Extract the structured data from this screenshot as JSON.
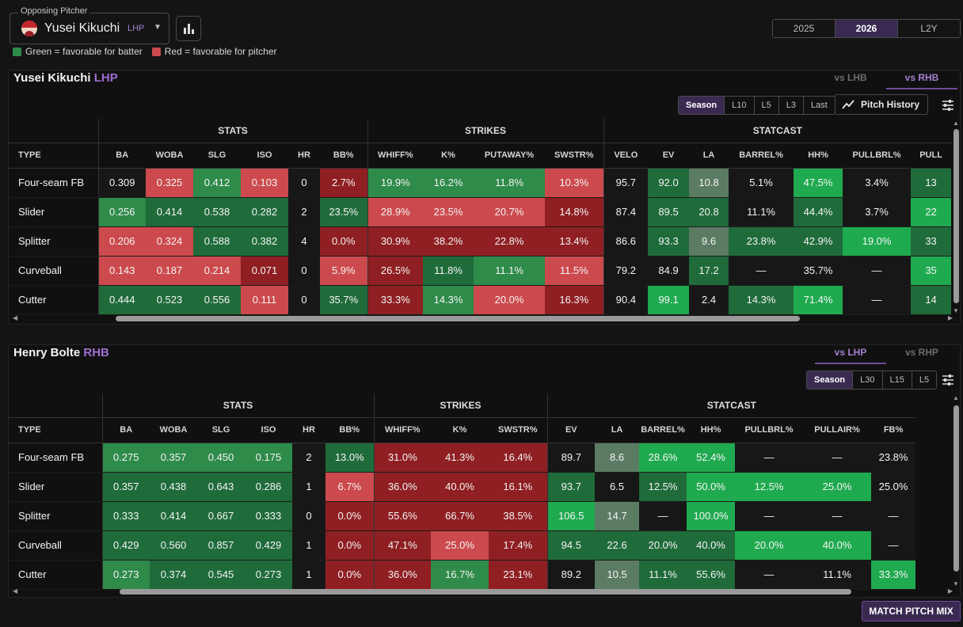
{
  "header": {
    "select_legend": "Opposing Pitcher",
    "pitcher_name": "Yusei Kikuchi",
    "pitcher_hand": "LHP",
    "legend_green": "Green = favorable for batter",
    "legend_red": "Red = favorable for pitcher",
    "years": [
      "2025",
      "2026",
      "L2Y"
    ],
    "active_year": "2026"
  },
  "colors": {
    "g1": "#1f6b3a",
    "g2": "#2e8b4a",
    "g3": "#1faa4f",
    "gray": "#5b7b63",
    "r1": "#8f1f22",
    "r2": "#cc4a4d",
    "dark": "#171717",
    "accent": "#a57fd0",
    "green_swatch": "#2e8b4a",
    "red_swatch": "#cc4a4d"
  },
  "pitcher_panel": {
    "name": "Yusei Kikuchi",
    "hand": "LHP",
    "split_tabs": [
      "vs LHB",
      "vs RHB"
    ],
    "active_split": "vs RHB",
    "ranges": [
      "Season",
      "L10",
      "L5",
      "L3",
      "Last"
    ],
    "active_range": "Season",
    "pitch_history_label": "Pitch History",
    "groups": [
      {
        "label": "STATS",
        "span": 6
      },
      {
        "label": "STRIKES",
        "span": 4
      },
      {
        "label": "STATCAST",
        "span": 7
      }
    ],
    "columns": [
      "TYPE",
      "BA",
      "WOBA",
      "SLG",
      "ISO",
      "HR",
      "BB%",
      "WHIFF%",
      "K%",
      "PUTAWAY%",
      "SWSTR%",
      "VELO",
      "EV",
      "LA",
      "BARREL%",
      "HH%",
      "PULLBRL%",
      "PULL"
    ],
    "rows": [
      {
        "type": "Four-seam FB",
        "cells": [
          [
            "0.309",
            "dark"
          ],
          [
            "0.325",
            "r2"
          ],
          [
            "0.412",
            "g2"
          ],
          [
            "0.103",
            "r2"
          ],
          [
            "0",
            "dark"
          ],
          [
            "2.7%",
            "r1"
          ],
          [
            "19.9%",
            "g2"
          ],
          [
            "16.2%",
            "g2"
          ],
          [
            "11.8%",
            "g2"
          ],
          [
            "10.3%",
            "r2"
          ],
          [
            "95.7",
            "dark"
          ],
          [
            "92.0",
            "g1"
          ],
          [
            "10.8",
            "gray"
          ],
          [
            "5.1%",
            "dark"
          ],
          [
            "47.5%",
            "g3"
          ],
          [
            "3.4%",
            "dark"
          ],
          [
            "13",
            "g1"
          ]
        ]
      },
      {
        "type": "Slider",
        "cells": [
          [
            "0.256",
            "g2"
          ],
          [
            "0.414",
            "g1"
          ],
          [
            "0.538",
            "g1"
          ],
          [
            "0.282",
            "g1"
          ],
          [
            "2",
            "dark"
          ],
          [
            "23.5%",
            "g1"
          ],
          [
            "28.9%",
            "r2"
          ],
          [
            "23.5%",
            "r2"
          ],
          [
            "20.7%",
            "r2"
          ],
          [
            "14.8%",
            "r1"
          ],
          [
            "87.4",
            "dark"
          ],
          [
            "89.5",
            "g1"
          ],
          [
            "20.8",
            "g1"
          ],
          [
            "11.1%",
            "dark"
          ],
          [
            "44.4%",
            "g1"
          ],
          [
            "3.7%",
            "dark"
          ],
          [
            "22",
            "g3"
          ]
        ]
      },
      {
        "type": "Splitter",
        "cells": [
          [
            "0.206",
            "r2"
          ],
          [
            "0.324",
            "r2"
          ],
          [
            "0.588",
            "g1"
          ],
          [
            "0.382",
            "g1"
          ],
          [
            "4",
            "dark"
          ],
          [
            "0.0%",
            "r1"
          ],
          [
            "30.9%",
            "r1"
          ],
          [
            "38.2%",
            "r1"
          ],
          [
            "22.8%",
            "r1"
          ],
          [
            "13.4%",
            "r1"
          ],
          [
            "86.6",
            "dark"
          ],
          [
            "93.3",
            "g1"
          ],
          [
            "9.6",
            "gray"
          ],
          [
            "23.8%",
            "g1"
          ],
          [
            "42.9%",
            "g1"
          ],
          [
            "19.0%",
            "g3"
          ],
          [
            "33",
            "g1"
          ]
        ]
      },
      {
        "type": "Curveball",
        "cells": [
          [
            "0.143",
            "r2"
          ],
          [
            "0.187",
            "r2"
          ],
          [
            "0.214",
            "r2"
          ],
          [
            "0.071",
            "r1"
          ],
          [
            "0",
            "dark"
          ],
          [
            "5.9%",
            "r2"
          ],
          [
            "26.5%",
            "r1"
          ],
          [
            "11.8%",
            "g1"
          ],
          [
            "11.1%",
            "g2"
          ],
          [
            "11.5%",
            "r2"
          ],
          [
            "79.2",
            "dark"
          ],
          [
            "84.9",
            "dark"
          ],
          [
            "17.2",
            "g1"
          ],
          [
            "—",
            "dark"
          ],
          [
            "35.7%",
            "dark"
          ],
          [
            "—",
            "dark"
          ],
          [
            "35",
            "g3"
          ]
        ]
      },
      {
        "type": "Cutter",
        "cells": [
          [
            "0.444",
            "g1"
          ],
          [
            "0.523",
            "g1"
          ],
          [
            "0.556",
            "g1"
          ],
          [
            "0.111",
            "r2"
          ],
          [
            "0",
            "dark"
          ],
          [
            "35.7%",
            "g1"
          ],
          [
            "33.3%",
            "r1"
          ],
          [
            "14.3%",
            "g2"
          ],
          [
            "20.0%",
            "r2"
          ],
          [
            "16.3%",
            "r1"
          ],
          [
            "90.4",
            "dark"
          ],
          [
            "99.1",
            "g3"
          ],
          [
            "2.4",
            "dark"
          ],
          [
            "14.3%",
            "g1"
          ],
          [
            "71.4%",
            "g3"
          ],
          [
            "—",
            "dark"
          ],
          [
            "14",
            "g1"
          ]
        ]
      }
    ]
  },
  "batter_panel": {
    "name": "Henry Bolte",
    "hand": "RHB",
    "split_tabs": [
      "vs LHP",
      "vs RHP"
    ],
    "active_split": "vs LHP",
    "ranges": [
      "Season",
      "L30",
      "L15",
      "L5"
    ],
    "active_range": "Season",
    "groups": [
      {
        "label": "STATS",
        "span": 6
      },
      {
        "label": "STRIKES",
        "span": 3
      },
      {
        "label": "STATCAST",
        "span": 7
      }
    ],
    "columns": [
      "TYPE",
      "BA",
      "WOBA",
      "SLG",
      "ISO",
      "HR",
      "BB%",
      "WHIFF%",
      "K%",
      "SWSTR%",
      "EV",
      "LA",
      "BARREL%",
      "HH%",
      "PULLBRL%",
      "PULLAIR%",
      "FB%"
    ],
    "rows": [
      {
        "type": "Four-seam FB",
        "cells": [
          [
            "0.275",
            "g2"
          ],
          [
            "0.357",
            "g2"
          ],
          [
            "0.450",
            "g2"
          ],
          [
            "0.175",
            "g2"
          ],
          [
            "2",
            "dark"
          ],
          [
            "13.0%",
            "g1"
          ],
          [
            "31.0%",
            "r1"
          ],
          [
            "41.3%",
            "r1"
          ],
          [
            "16.4%",
            "r1"
          ],
          [
            "89.7",
            "dark"
          ],
          [
            "8.6",
            "gray"
          ],
          [
            "28.6%",
            "g3"
          ],
          [
            "52.4%",
            "g3"
          ],
          [
            "—",
            "dark"
          ],
          [
            "—",
            "dark"
          ],
          [
            "23.8%",
            "dark"
          ]
        ]
      },
      {
        "type": "Slider",
        "cells": [
          [
            "0.357",
            "g1"
          ],
          [
            "0.438",
            "g1"
          ],
          [
            "0.643",
            "g1"
          ],
          [
            "0.286",
            "g1"
          ],
          [
            "1",
            "dark"
          ],
          [
            "6.7%",
            "r2"
          ],
          [
            "36.0%",
            "r1"
          ],
          [
            "40.0%",
            "r1"
          ],
          [
            "16.1%",
            "r1"
          ],
          [
            "93.7",
            "g1"
          ],
          [
            "6.5",
            "dark"
          ],
          [
            "12.5%",
            "g1"
          ],
          [
            "50.0%",
            "g3"
          ],
          [
            "12.5%",
            "g3"
          ],
          [
            "25.0%",
            "g3"
          ],
          [
            "25.0%",
            "dark"
          ]
        ]
      },
      {
        "type": "Splitter",
        "cells": [
          [
            "0.333",
            "g1"
          ],
          [
            "0.414",
            "g1"
          ],
          [
            "0.667",
            "g1"
          ],
          [
            "0.333",
            "g1"
          ],
          [
            "0",
            "dark"
          ],
          [
            "0.0%",
            "r1"
          ],
          [
            "55.6%",
            "r1"
          ],
          [
            "66.7%",
            "r1"
          ],
          [
            "38.5%",
            "r1"
          ],
          [
            "106.5",
            "g3"
          ],
          [
            "14.7",
            "gray"
          ],
          [
            "—",
            "dark"
          ],
          [
            "100.0%",
            "g3"
          ],
          [
            "—",
            "dark"
          ],
          [
            "—",
            "dark"
          ],
          [
            "—",
            "dark"
          ]
        ]
      },
      {
        "type": "Curveball",
        "cells": [
          [
            "0.429",
            "g1"
          ],
          [
            "0.560",
            "g1"
          ],
          [
            "0.857",
            "g1"
          ],
          [
            "0.429",
            "g1"
          ],
          [
            "1",
            "dark"
          ],
          [
            "0.0%",
            "r1"
          ],
          [
            "47.1%",
            "r1"
          ],
          [
            "25.0%",
            "r2"
          ],
          [
            "17.4%",
            "r1"
          ],
          [
            "94.5",
            "g1"
          ],
          [
            "22.6",
            "g1"
          ],
          [
            "20.0%",
            "g1"
          ],
          [
            "40.0%",
            "g1"
          ],
          [
            "20.0%",
            "g3"
          ],
          [
            "40.0%",
            "g3"
          ],
          [
            "—",
            "dark"
          ]
        ]
      },
      {
        "type": "Cutter",
        "cells": [
          [
            "0.273",
            "g2"
          ],
          [
            "0.374",
            "g1"
          ],
          [
            "0.545",
            "g1"
          ],
          [
            "0.273",
            "g1"
          ],
          [
            "1",
            "dark"
          ],
          [
            "0.0%",
            "r1"
          ],
          [
            "36.0%",
            "r1"
          ],
          [
            "16.7%",
            "g2"
          ],
          [
            "23.1%",
            "r1"
          ],
          [
            "89.2",
            "dark"
          ],
          [
            "10.5",
            "gray"
          ],
          [
            "11.1%",
            "g1"
          ],
          [
            "55.6%",
            "g1"
          ],
          [
            "—",
            "dark"
          ],
          [
            "11.1%",
            "dark"
          ],
          [
            "33.3%",
            "g3"
          ]
        ]
      }
    ]
  },
  "footer": {
    "match_label": "MATCH PITCH MIX"
  }
}
